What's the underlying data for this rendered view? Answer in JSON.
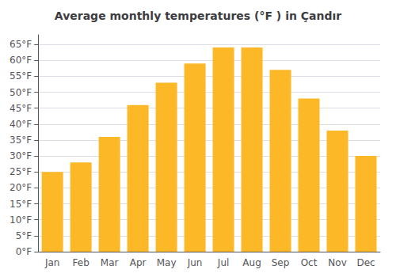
{
  "chart_data": {
    "type": "bar",
    "title": "Average monthly temperatures (°F ) in Çandır",
    "categories": [
      "Jan",
      "Feb",
      "Mar",
      "Apr",
      "May",
      "Jun",
      "Jul",
      "Aug",
      "Sep",
      "Oct",
      "Nov",
      "Dec"
    ],
    "values": [
      25,
      28,
      36,
      46,
      53,
      59,
      64,
      64,
      57,
      48,
      38,
      30
    ],
    "color": "#FDB827",
    "ylim": [
      0,
      68
    ],
    "yticks": [
      {
        "value": 0,
        "label": "0°F"
      },
      {
        "value": 5,
        "label": "5°F"
      },
      {
        "value": 10,
        "label": "10°F"
      },
      {
        "value": 15,
        "label": "15°F"
      },
      {
        "value": 20,
        "label": "20°F"
      },
      {
        "value": 25,
        "label": "25°F"
      },
      {
        "value": 30,
        "label": "30°F"
      },
      {
        "value": 35,
        "label": "35°F"
      },
      {
        "value": 40,
        "label": "40°F"
      },
      {
        "value": 45,
        "label": "45°F"
      },
      {
        "value": 50,
        "label": "50°F"
      },
      {
        "value": 55,
        "label": "55°F"
      },
      {
        "value": 60,
        "label": "60°F"
      },
      {
        "value": 65,
        "label": "65°F"
      }
    ],
    "grid": true
  }
}
